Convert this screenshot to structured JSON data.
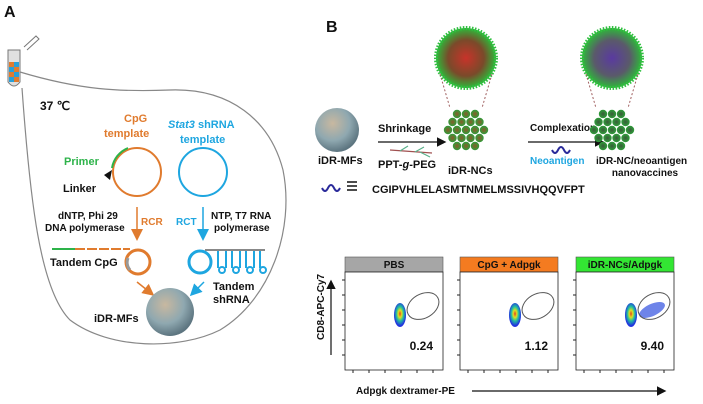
{
  "panel_a": {
    "label": "A",
    "temperature": "37 ℃",
    "cpg_template": [
      "CpG",
      "template"
    ],
    "stat3_template": {
      "gene": "Stat3",
      "rest": " shRNA",
      "line2": "template"
    },
    "primer": "Primer",
    "linker": "Linker",
    "rcr_reagents": [
      "dNTP, Phi 29",
      "DNA polymerase"
    ],
    "rcr": "RCR",
    "rct": "RCT",
    "rct_reagents": [
      "NTP, T7 RNA",
      "polymerase"
    ],
    "tandem_cpg": "Tandem CpG",
    "tandem_shrna": [
      "Tandem",
      "shRNA"
    ],
    "product": "iDR-MFs"
  },
  "panel_b": {
    "label": "B",
    "start": "iDR-MFs",
    "step1": "Shrinkage",
    "polymer": {
      "a": "PPT-",
      "b": "g",
      "c": "-PEG"
    },
    "intermediate": "iDR-NCs",
    "step2": "Complexation",
    "neoantigen": "Neoantigen",
    "final": [
      "iDR-NC/neoantigen",
      "nanovaccines"
    ],
    "sequence": "CGIPVHLELASMTNMELMSSIVHQQVFPT",
    "flow": {
      "y_label": "CD8-APC-Cy7",
      "x_label": "Adpgk dextramer-PE",
      "panels": [
        {
          "title": "PBS",
          "value": "0.24",
          "color": "#a6a6a6"
        },
        {
          "title": "CpG + Adpgk",
          "value": "1.12",
          "color": "#f47b20"
        },
        {
          "title": "iDR-NCs/Adpgk",
          "value": "9.40",
          "color": "#33e633"
        }
      ]
    }
  },
  "colors": {
    "orange": "#e07b2e",
    "blue": "#1ea6e0",
    "green": "#2db34a",
    "neoantigen": "#2a2a9a"
  }
}
